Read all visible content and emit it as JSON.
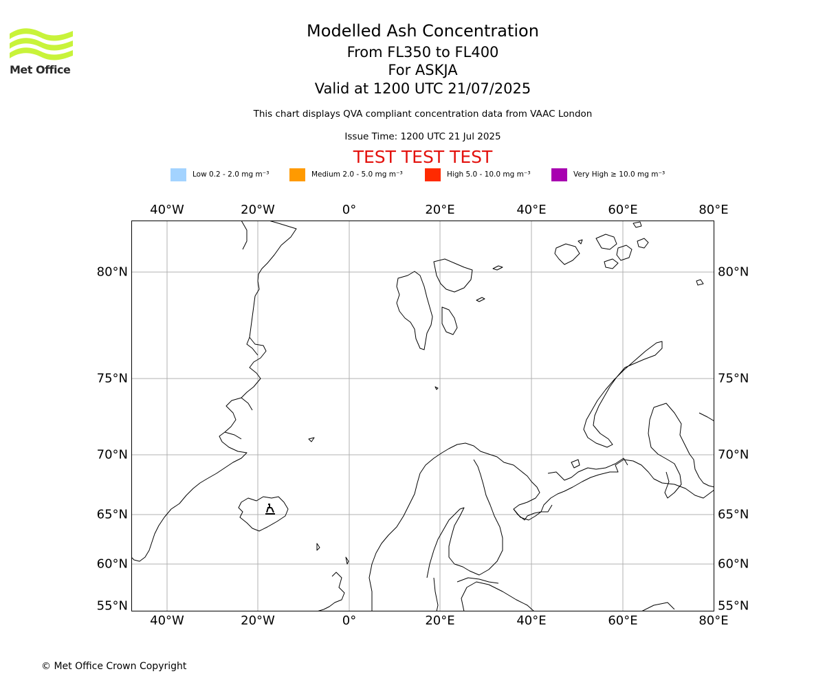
{
  "logo": {
    "text": "Met Office",
    "color": "#c8f33a"
  },
  "title": {
    "main": "Modelled Ash Concentration",
    "flight_levels": "From FL350 to FL400",
    "volcano": "For ASKJA",
    "valid": "Valid at 1200 UTC 21/07/2025"
  },
  "description": "This chart displays QVA compliant concentration data from VAAC London",
  "issue_time": "Issue Time: 1200 UTC 21 Jul 2025",
  "test_banner": "TEST TEST TEST",
  "legend": [
    {
      "label": "Low 0.2 - 2.0 mg m⁻³",
      "color": "#a3d3ff"
    },
    {
      "label": "Medium 2.0 - 5.0 mg m⁻³",
      "color": "#ff9a00"
    },
    {
      "label": "High 5.0 - 10.0 mg m⁻³",
      "color": "#ff2a00"
    },
    {
      "label": "Very High  ≥  10.0 mg m⁻³",
      "color": "#a800b0"
    }
  ],
  "map": {
    "longitude_labels": [
      "40°W",
      "20°W",
      "0°",
      "20°E",
      "40°E",
      "60°E",
      "80°E"
    ],
    "latitude_labels": [
      "80°N",
      "75°N",
      "70°N",
      "65°N",
      "60°N",
      "55°N"
    ],
    "volcano_icon": "volcano-icon",
    "gridline_color": "#b0b0b0"
  },
  "copyright": "© Met Office Crown Copyright"
}
